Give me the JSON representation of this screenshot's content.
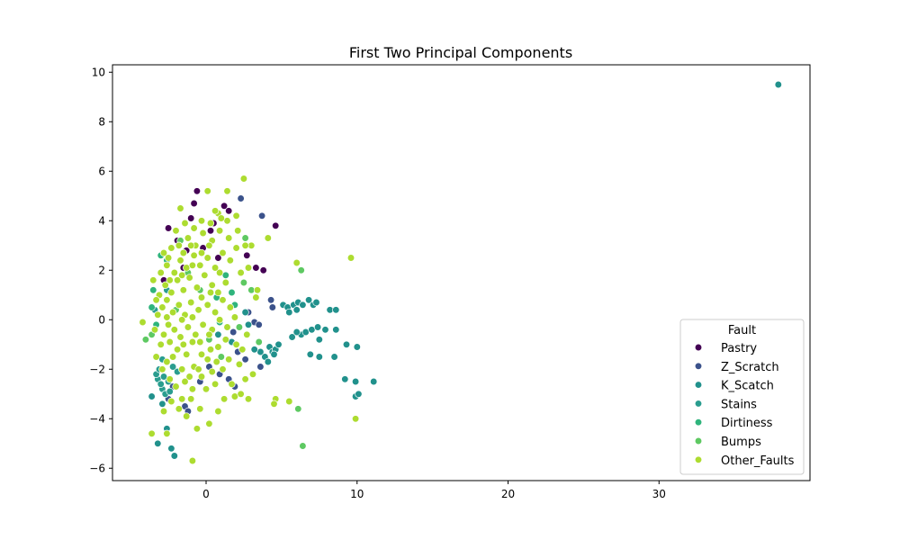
{
  "chart_data": {
    "type": "scatter",
    "title": "First Two Principal Components",
    "xlabel": "",
    "ylabel": "",
    "xlim": [
      -6.2,
      40.0
    ],
    "ylim": [
      -6.5,
      10.3
    ],
    "x_ticks": [
      0,
      10,
      20,
      30
    ],
    "y_ticks": [
      -6,
      -4,
      -2,
      0,
      2,
      4,
      6,
      8,
      10
    ],
    "grid": false,
    "legend": {
      "title": "Fault",
      "placement": "lower-right"
    },
    "series": [
      {
        "name": "Pastry",
        "color": "#440154",
        "points": [
          [
            -0.6,
            5.2
          ],
          [
            -0.8,
            4.7
          ],
          [
            0.3,
            3.6
          ],
          [
            1.2,
            4.6
          ],
          [
            1.5,
            4.4
          ],
          [
            3.3,
            2.1
          ],
          [
            3.8,
            2.0
          ],
          [
            4.6,
            3.8
          ],
          [
            -2.5,
            3.7
          ],
          [
            -1.9,
            3.2
          ],
          [
            -1.3,
            2.8
          ],
          [
            -0.2,
            2.9
          ],
          [
            0.8,
            2.5
          ],
          [
            -2.8,
            1.6
          ],
          [
            -1.5,
            2.1
          ],
          [
            0.5,
            3.9
          ],
          [
            -1.0,
            4.1
          ],
          [
            2.7,
            2.6
          ]
        ]
      },
      {
        "name": "Z_Scratch",
        "color": "#3b528b",
        "points": [
          [
            2.3,
            4.9
          ],
          [
            3.7,
            4.2
          ],
          [
            4.3,
            0.8
          ],
          [
            4.4,
            0.5
          ],
          [
            2.8,
            0.3
          ],
          [
            3.2,
            -0.1
          ],
          [
            3.5,
            -0.2
          ],
          [
            1.8,
            -0.5
          ],
          [
            2.6,
            -1.6
          ],
          [
            3.6,
            -1.9
          ],
          [
            1.5,
            -2.4
          ],
          [
            -1.4,
            -3.5
          ],
          [
            -2.5,
            -3.2
          ],
          [
            -1.2,
            -3.7
          ],
          [
            1.9,
            -2.7
          ],
          [
            0.9,
            -2.2
          ],
          [
            2.1,
            -1.3
          ],
          [
            -0.4,
            -2.5
          ],
          [
            -2.2,
            -2.7
          ],
          [
            0.2,
            -1.9
          ]
        ]
      },
      {
        "name": "K_Scatch",
        "color": "#21918c",
        "points": [
          [
            37.9,
            9.5
          ],
          [
            5.1,
            0.6
          ],
          [
            5.4,
            0.5
          ],
          [
            5.8,
            0.6
          ],
          [
            6.1,
            0.7
          ],
          [
            6.4,
            0.6
          ],
          [
            6.8,
            0.8
          ],
          [
            7.1,
            0.6
          ],
          [
            7.3,
            0.7
          ],
          [
            5.5,
            0.3
          ],
          [
            6.0,
            0.4
          ],
          [
            8.2,
            0.4
          ],
          [
            8.6,
            0.4
          ],
          [
            6.3,
            -0.6
          ],
          [
            6.6,
            -0.5
          ],
          [
            7.0,
            -0.4
          ],
          [
            7.4,
            -0.3
          ],
          [
            7.9,
            -0.4
          ],
          [
            8.6,
            -0.4
          ],
          [
            6.0,
            -0.5
          ],
          [
            5.7,
            -0.7
          ],
          [
            7.5,
            -0.8
          ],
          [
            6.9,
            -1.4
          ],
          [
            7.5,
            -1.5
          ],
          [
            8.5,
            -1.5
          ],
          [
            9.3,
            -1.0
          ],
          [
            10.0,
            -1.1
          ],
          [
            4.2,
            -1.1
          ],
          [
            4.4,
            -1.3
          ],
          [
            4.6,
            -1.2
          ],
          [
            4.8,
            -1.0
          ],
          [
            3.6,
            -1.3
          ],
          [
            3.9,
            -1.5
          ],
          [
            4.1,
            -1.7
          ],
          [
            3.2,
            -1.2
          ],
          [
            4.5,
            -1.4
          ],
          [
            9.2,
            -2.4
          ],
          [
            9.9,
            -2.5
          ],
          [
            11.1,
            -2.5
          ],
          [
            9.9,
            -3.1
          ],
          [
            10.1,
            -3.0
          ],
          [
            -3.2,
            -5.0
          ],
          [
            -2.3,
            -5.2
          ],
          [
            -2.1,
            -5.5
          ],
          [
            -2.6,
            -4.4
          ],
          [
            -3.6,
            -3.1
          ],
          [
            -2.9,
            -3.4
          ],
          [
            2.6,
            0.3
          ],
          [
            2.8,
            -0.2
          ],
          [
            1.7,
            -0.9
          ],
          [
            0.8,
            -0.6
          ]
        ]
      },
      {
        "name": "Stains",
        "color": "#2a9d8f",
        "points": [
          [
            -3.2,
            -2.4
          ],
          [
            -2.9,
            -2.8
          ],
          [
            -3.3,
            -2.2
          ],
          [
            -2.7,
            -3.0
          ],
          [
            -3.0,
            -2.6
          ],
          [
            -2.5,
            -2.5
          ],
          [
            -3.1,
            -2.0
          ],
          [
            -2.8,
            -2.3
          ],
          [
            -1.9,
            -2.1
          ],
          [
            -2.2,
            -1.9
          ],
          [
            -3.4,
            0.4
          ],
          [
            -2.6,
            1.2
          ],
          [
            -2.9,
            -1.6
          ],
          [
            -2.4,
            -2.9
          ]
        ]
      },
      {
        "name": "Dirtiness",
        "color": "#2fb47c",
        "points": [
          [
            1.3,
            1.8
          ],
          [
            0.7,
            0.9
          ],
          [
            -3.6,
            0.5
          ],
          [
            -3.5,
            1.2
          ],
          [
            -3.3,
            -0.2
          ],
          [
            -2.6,
            2.4
          ],
          [
            0.9,
            -0.1
          ],
          [
            1.9,
            0.6
          ],
          [
            -3.0,
            2.6
          ],
          [
            1.7,
            1.1
          ]
        ]
      },
      {
        "name": "Bumps",
        "color": "#5ec962",
        "points": [
          [
            6.3,
            2.0
          ],
          [
            6.1,
            -3.6
          ],
          [
            6.4,
            -5.1
          ],
          [
            -4.0,
            -0.8
          ],
          [
            -3.6,
            -0.6
          ],
          [
            2.5,
            1.5
          ],
          [
            3.0,
            1.2
          ],
          [
            2.2,
            -0.3
          ],
          [
            -1.2,
            1.9
          ],
          [
            -0.4,
            1.2
          ],
          [
            0.2,
            -0.8
          ],
          [
            -2.0,
            0.4
          ],
          [
            1.0,
            -1.5
          ],
          [
            2.6,
            3.3
          ],
          [
            -1.7,
            3.2
          ],
          [
            3.5,
            -0.9
          ]
        ]
      },
      {
        "name": "Other_Faults",
        "color": "#addc30",
        "points": [
          [
            -4.2,
            -0.1
          ],
          [
            -3.6,
            -4.6
          ],
          [
            -2.6,
            -4.6
          ],
          [
            -0.9,
            -5.7
          ],
          [
            9.6,
            2.5
          ],
          [
            9.9,
            -4.0
          ],
          [
            5.5,
            -3.3
          ],
          [
            4.6,
            -3.2
          ],
          [
            4.5,
            -3.4
          ],
          [
            6.0,
            2.3
          ],
          [
            2.5,
            5.7
          ],
          [
            1.4,
            5.2
          ],
          [
            0.1,
            5.2
          ],
          [
            4.1,
            3.3
          ],
          [
            3.0,
            3.0
          ],
          [
            3.4,
            1.2
          ],
          [
            0.2,
            -4.2
          ],
          [
            -0.6,
            -4.4
          ],
          [
            -1.3,
            -3.9
          ],
          [
            -0.4,
            -3.6
          ],
          [
            0.8,
            -3.7
          ],
          [
            1.2,
            -3.2
          ],
          [
            1.9,
            -3.1
          ],
          [
            2.3,
            -3.0
          ],
          [
            2.8,
            -3.2
          ],
          [
            -2.3,
            -3.3
          ],
          [
            -1.8,
            -3.6
          ],
          [
            -1.6,
            -3.2
          ],
          [
            -2.0,
            -2.7
          ],
          [
            -1.4,
            -2.5
          ],
          [
            -0.9,
            -2.8
          ],
          [
            -0.3,
            -2.3
          ],
          [
            0.4,
            -2.1
          ],
          [
            0.6,
            -2.6
          ],
          [
            1.1,
            -2.0
          ],
          [
            1.5,
            -1.6
          ],
          [
            2.2,
            -1.8
          ],
          [
            2.6,
            -2.4
          ],
          [
            -2.6,
            -1.7
          ],
          [
            -2.2,
            -1.5
          ],
          [
            -1.9,
            -1.2
          ],
          [
            -1.3,
            -1.4
          ],
          [
            -0.8,
            -1.9
          ],
          [
            -0.3,
            -1.4
          ],
          [
            0.3,
            -1.2
          ],
          [
            0.8,
            -1.1
          ],
          [
            1.3,
            -0.8
          ],
          [
            2.0,
            -1.0
          ],
          [
            -3.0,
            -1.0
          ],
          [
            -2.8,
            -0.6
          ],
          [
            -2.5,
            -0.2
          ],
          [
            -2.1,
            -0.4
          ],
          [
            -1.7,
            -0.7
          ],
          [
            -1.2,
            -0.3
          ],
          [
            -0.7,
            -0.6
          ],
          [
            -0.2,
            -0.2
          ],
          [
            0.4,
            -0.4
          ],
          [
            0.9,
            0.0
          ],
          [
            1.4,
            -0.3
          ],
          [
            -3.2,
            0.2
          ],
          [
            -2.9,
            0.5
          ],
          [
            -2.6,
            0.8
          ],
          [
            -2.2,
            0.3
          ],
          [
            -1.8,
            0.6
          ],
          [
            -1.4,
            0.2
          ],
          [
            -1.0,
            0.7
          ],
          [
            -0.5,
            0.4
          ],
          [
            0.1,
            0.6
          ],
          [
            0.6,
            0.3
          ],
          [
            1.1,
            0.8
          ],
          [
            1.6,
            0.5
          ],
          [
            -3.1,
            1.0
          ],
          [
            -2.7,
            1.4
          ],
          [
            -2.3,
            1.1
          ],
          [
            -1.9,
            1.6
          ],
          [
            -1.5,
            1.2
          ],
          [
            -1.1,
            1.7
          ],
          [
            -0.6,
            1.3
          ],
          [
            -0.1,
            1.8
          ],
          [
            0.4,
            1.4
          ],
          [
            0.9,
            1.9
          ],
          [
            1.3,
            1.5
          ],
          [
            -3.0,
            1.9
          ],
          [
            -2.6,
            2.2
          ],
          [
            -2.1,
            1.9
          ],
          [
            -1.7,
            2.4
          ],
          [
            -1.3,
            2.1
          ],
          [
            -0.8,
            2.6
          ],
          [
            -0.4,
            2.2
          ],
          [
            0.1,
            2.5
          ],
          [
            0.6,
            2.1
          ],
          [
            1.1,
            2.7
          ],
          [
            1.6,
            2.4
          ],
          [
            2.0,
            2.9
          ],
          [
            -2.8,
            2.7
          ],
          [
            -2.3,
            2.9
          ],
          [
            -1.8,
            3.0
          ],
          [
            -1.2,
            3.3
          ],
          [
            -0.7,
            3.0
          ],
          [
            -0.2,
            3.5
          ],
          [
            0.4,
            3.2
          ],
          [
            0.9,
            3.6
          ],
          [
            1.5,
            3.3
          ],
          [
            2.1,
            3.6
          ],
          [
            2.6,
            3.0
          ],
          [
            -2.0,
            3.6
          ],
          [
            -1.4,
            3.9
          ],
          [
            -0.8,
            3.7
          ],
          [
            -0.3,
            4.0
          ],
          [
            0.3,
            3.9
          ],
          [
            0.8,
            4.3
          ],
          [
            1.4,
            4.0
          ],
          [
            2.0,
            4.2
          ],
          [
            -1.7,
            4.5
          ],
          [
            0.6,
            4.4
          ],
          [
            1.0,
            4.1
          ],
          [
            -3.3,
            -1.5
          ],
          [
            -3.4,
            -0.4
          ],
          [
            -3.3,
            0.8
          ],
          [
            -3.5,
            1.6
          ],
          [
            -2.9,
            -2.0
          ],
          [
            -2.4,
            -2.4
          ],
          [
            -1.6,
            -2.0
          ],
          [
            -1.1,
            -2.3
          ],
          [
            -0.5,
            -2.0
          ],
          [
            0.1,
            -1.6
          ],
          [
            0.7,
            -1.7
          ],
          [
            -2.4,
            -0.9
          ],
          [
            -1.5,
            -1.0
          ],
          [
            -0.9,
            -0.9
          ],
          [
            -0.4,
            -0.9
          ],
          [
            0.2,
            -0.6
          ],
          [
            -2.6,
            0.1
          ],
          [
            -1.6,
            0.0
          ],
          [
            -0.9,
            0.1
          ],
          [
            -0.3,
            0.9
          ],
          [
            0.3,
            1.1
          ],
          [
            0.8,
            1.1
          ],
          [
            -2.4,
            1.6
          ],
          [
            -1.6,
            1.8
          ],
          [
            -0.9,
            2.2
          ],
          [
            -0.3,
            2.7
          ],
          [
            0.2,
            3.0
          ],
          [
            -2.5,
            2.5
          ],
          [
            -1.5,
            2.7
          ],
          [
            -1.0,
            3.0
          ],
          [
            2.4,
            -1.2
          ],
          [
            2.7,
            -0.6
          ],
          [
            1.9,
            0.1
          ],
          [
            2.3,
            1.9
          ],
          [
            2.8,
            2.1
          ],
          [
            3.1,
            -2.2
          ],
          [
            1.7,
            -2.6
          ],
          [
            -2.8,
            -3.7
          ],
          [
            -1.0,
            -3.2
          ],
          [
            0.0,
            -2.8
          ],
          [
            3.3,
            0.9
          ]
        ]
      }
    ]
  }
}
